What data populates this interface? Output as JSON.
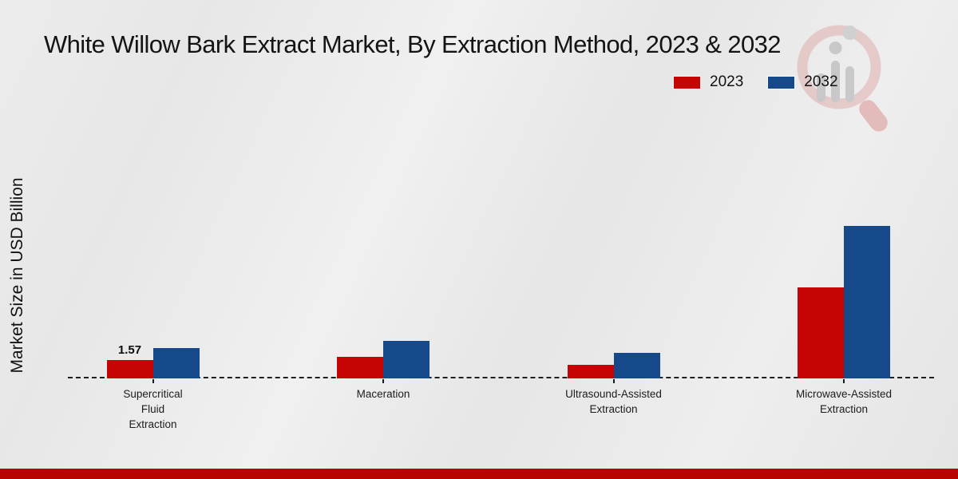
{
  "chart_data": {
    "type": "bar",
    "title": "White Willow Bark Extract Market, By Extraction Method, 2023 & 2032",
    "ylabel": "Market Size in USD Billion",
    "xlabel": "",
    "categories": [
      "Supercritical\nFluid\nExtraction",
      "Maceration",
      "Ultrasound-Assisted\nExtraction",
      "Microwave-Assisted\nExtraction"
    ],
    "series": [
      {
        "name": "2023",
        "color": "#c70404",
        "values": [
          1.57,
          1.85,
          1.15,
          7.8
        ]
      },
      {
        "name": "2032",
        "color": "#15498a",
        "values": [
          2.6,
          3.2,
          2.2,
          13.05
        ]
      }
    ],
    "annotations": [
      {
        "text": "1.57",
        "category_index": 0,
        "series_index": 0
      }
    ],
    "ylim": [
      0,
      14
    ],
    "grid": false,
    "baseline_style": "dashed",
    "legend_position": "top-right",
    "unit": "USD Billion"
  },
  "footer": {
    "strip_color": "#b90404"
  },
  "watermark": {
    "name": "market-research-logo"
  }
}
